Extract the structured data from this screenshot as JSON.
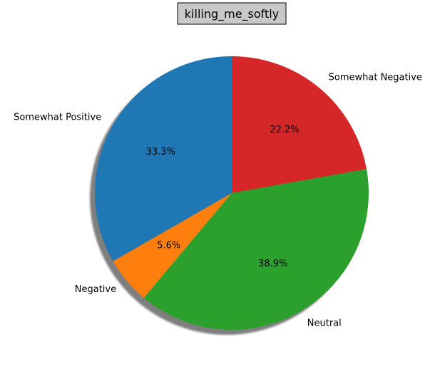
{
  "chart_data": {
    "type": "pie",
    "title": "killing_me_softly",
    "categories": [
      "Somewhat Negative",
      "Neutral",
      "Negative",
      "Somewhat Positive"
    ],
    "values": [
      22.2,
      38.9,
      5.6,
      33.3
    ],
    "percent_labels": [
      "22.2%",
      "38.9%",
      "5.6%",
      "33.3%"
    ],
    "colors": [
      "#d62728",
      "#2ca02c",
      "#ff7f0e",
      "#1f77b4"
    ],
    "start_angle_deg": 90,
    "direction": "clockwise",
    "shadow": true,
    "legend": "none"
  }
}
